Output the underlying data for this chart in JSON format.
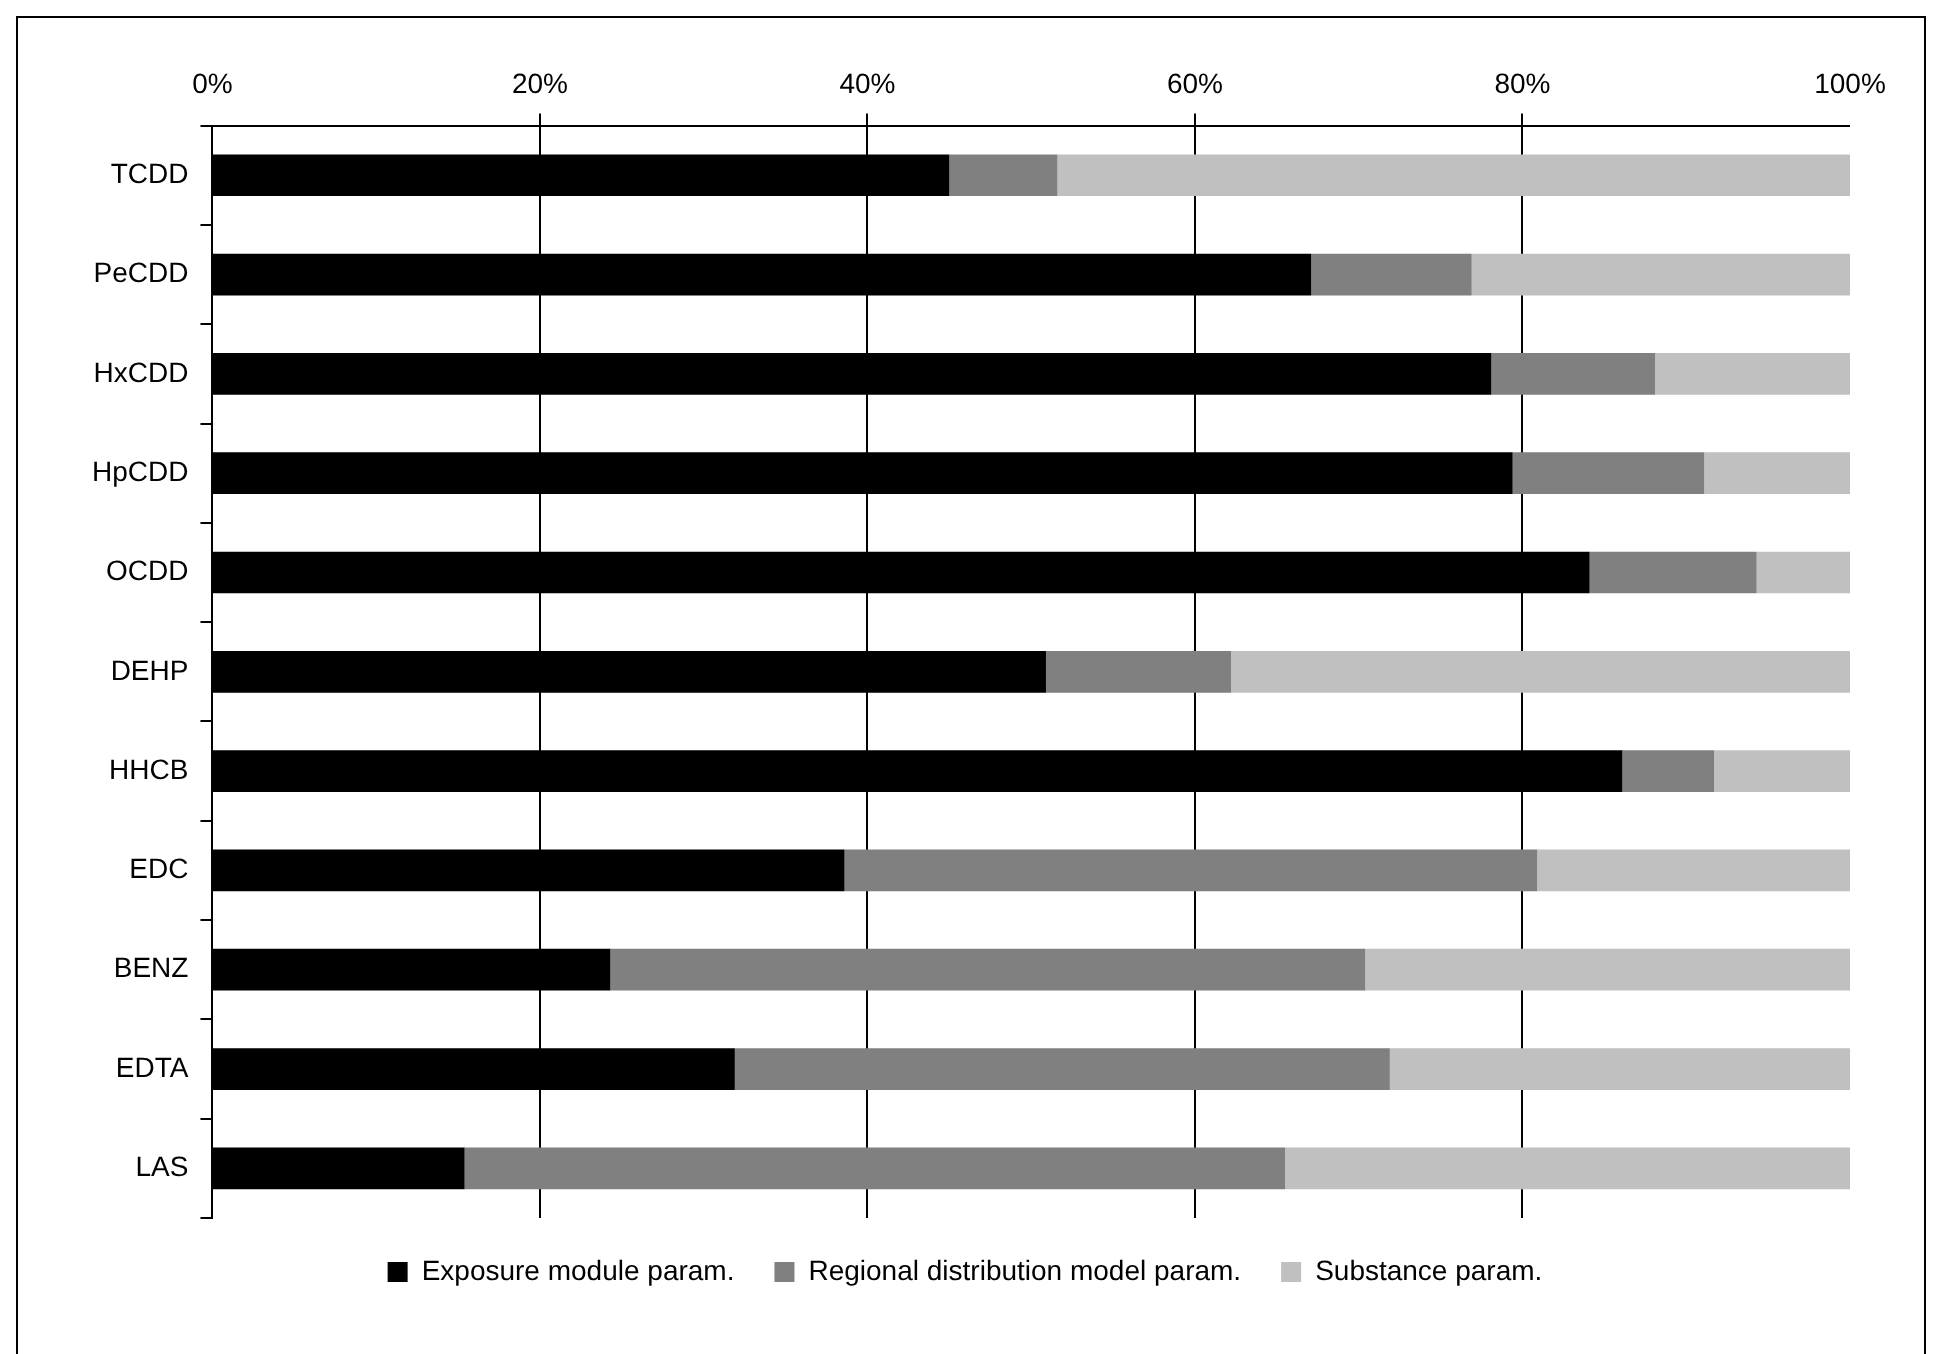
{
  "chart_data": {
    "type": "bar",
    "orientation": "horizontal",
    "stacked": true,
    "categories": [
      "TCDD",
      "PeCDD",
      "HxCDD",
      "HpCDD",
      "OCDD",
      "DEHP",
      "HHCB",
      "EDC",
      "BENZ",
      "EDTA",
      "LAS"
    ],
    "series": [
      {
        "name": "Exposure module param.",
        "color": "#000000",
        "values": [
          45,
          67.1,
          78.1,
          79.4,
          84.1,
          50.9,
          86.1,
          38.6,
          24.3,
          31.9,
          15.4
        ]
      },
      {
        "name": "Regional distribution model param.",
        "color": "#808080",
        "values": [
          6.6,
          9.8,
          10,
          11.7,
          10.2,
          11.3,
          5.6,
          42.3,
          46.1,
          40,
          50.1
        ]
      },
      {
        "name": "Substance param.",
        "color": "#c0c0c0",
        "values": [
          48.4,
          23.1,
          11.9,
          8.9,
          5.7,
          37.8,
          8.3,
          19.1,
          29.6,
          28.1,
          34.5
        ]
      }
    ],
    "xlim": [
      0,
      100
    ],
    "xticks": [
      {
        "value": 0,
        "label": "0%"
      },
      {
        "value": 20,
        "label": "20%"
      },
      {
        "value": 40,
        "label": "40%"
      },
      {
        "value": 60,
        "label": "60%"
      },
      {
        "value": 80,
        "label": "80%"
      },
      {
        "value": 100,
        "label": "100%"
      }
    ],
    "grid": "x",
    "legend": "bottom"
  }
}
